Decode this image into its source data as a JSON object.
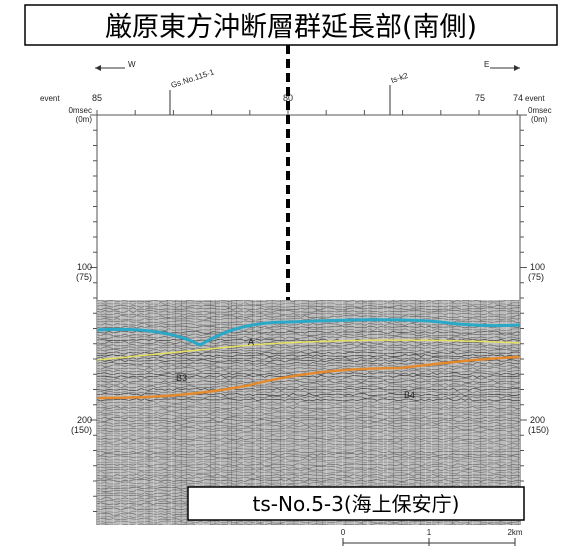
{
  "header": {
    "title": "厳原東方沖断層群延長部(南側)"
  },
  "profile": {
    "direction_left": "W",
    "direction_right": "E",
    "wells": [
      "Gs.No.115-1",
      "ts-k2"
    ],
    "event_label": "event",
    "event_ticks": [
      "85",
      "80",
      "75",
      "74"
    ],
    "time_labels": [
      {
        "time": "0msec",
        "depth": "(0m)"
      },
      {
        "time": "100",
        "depth": "(75)"
      },
      {
        "time": "200",
        "depth": "(150)"
      }
    ],
    "horizons": [
      "A",
      "B3",
      "B4"
    ],
    "source": "ts-No.5-3(海上保安庁)",
    "scale": [
      "0",
      "1",
      "2km"
    ]
  }
}
